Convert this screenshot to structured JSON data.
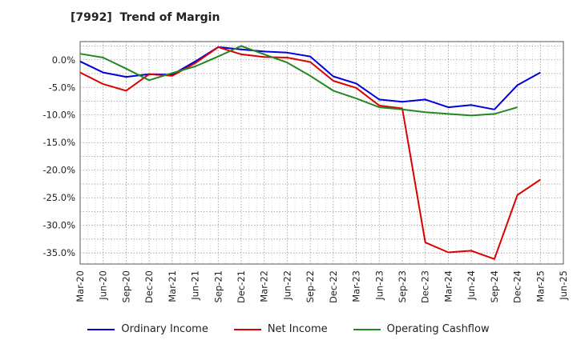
{
  "chart_data": {
    "type": "line",
    "title": "[7992]  Trend of Margin",
    "x": [
      "Mar-20",
      "Jun-20",
      "Sep-20",
      "Dec-20",
      "Mar-21",
      "Jun-21",
      "Sep-21",
      "Dec-21",
      "Mar-22",
      "Jun-22",
      "Sep-22",
      "Dec-22",
      "Mar-23",
      "Jun-23",
      "Sep-23",
      "Dec-23",
      "Mar-24",
      "Jun-24",
      "Sep-24",
      "Dec-24",
      "Mar-25",
      "Jun-25"
    ],
    "ylim": [
      -37,
      3.3
    ],
    "yticks": [
      0,
      -5,
      -10,
      -15,
      -20,
      -25,
      -30,
      -35
    ],
    "ytick_labels": [
      "0.0%",
      "-5.0%",
      "-10.0%",
      "-15.0%",
      "-20.0%",
      "-25.0%",
      "-30.0%",
      "-35.0%"
    ],
    "grid": true,
    "legend_position": "bottom",
    "series": [
      {
        "name": "Ordinary Income",
        "color": "#0000dd",
        "values": [
          -0.3,
          -2.3,
          -3.1,
          -2.6,
          -2.7,
          -0.3,
          2.3,
          1.9,
          1.5,
          1.3,
          0.6,
          -3.0,
          -4.3,
          -7.2,
          -7.6,
          -7.2,
          -8.6,
          -8.2,
          -9.0,
          -4.6,
          -2.3,
          null
        ]
      },
      {
        "name": "Net Income",
        "color": "#dd0000",
        "values": [
          -2.3,
          -4.4,
          -5.6,
          -2.6,
          -2.9,
          -0.6,
          2.3,
          1.0,
          0.5,
          0.4,
          -0.4,
          -3.8,
          -5.1,
          -8.3,
          -8.8,
          -33.1,
          -34.9,
          -34.6,
          -36.1,
          -24.5,
          -21.7,
          null
        ]
      },
      {
        "name": "Operating Cashflow",
        "color": "#228822",
        "values": [
          1.1,
          0.4,
          -1.6,
          -3.7,
          -2.4,
          -1.2,
          0.6,
          2.5,
          1.0,
          -0.5,
          -2.9,
          -5.6,
          -7.0,
          -8.6,
          -9.0,
          -9.5,
          -9.8,
          -10.1,
          -9.8,
          -8.6,
          null,
          null
        ]
      }
    ]
  }
}
